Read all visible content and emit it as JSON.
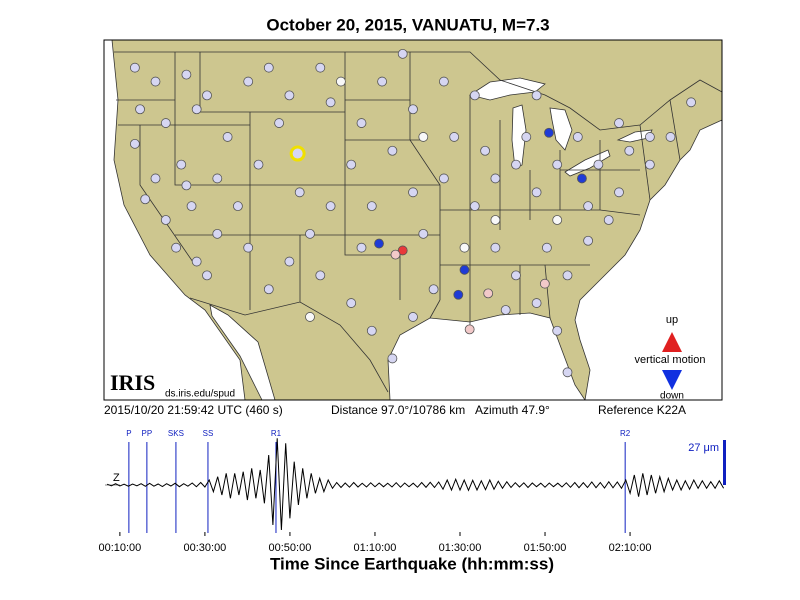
{
  "chart_data": [
    {
      "type": "map",
      "title": "October 20, 2015, VANUATU, M=7.3",
      "xlim": [
        -126,
        -66
      ],
      "ylim": [
        24,
        50
      ],
      "land_color": "#cdc68f",
      "series": [
        {
          "color": "#d6d6f2",
          "x": [
            -123,
            -121,
            -118,
            -122.5,
            -120,
            -117,
            -123,
            -121,
            -118.5,
            -122,
            -120,
            -117.5,
            -119,
            -117,
            -116,
            -115,
            -118,
            -115,
            -114,
            -116,
            -112,
            -110,
            -108,
            -105,
            -104,
            -109,
            -111,
            -113,
            -112,
            -110,
            -108,
            -106,
            -107,
            -104,
            -105,
            -102,
            -100,
            -98,
            -101,
            -100,
            -102,
            -101,
            -99,
            -97,
            -96,
            -98,
            -96,
            -95,
            -94,
            -96,
            -93,
            -92,
            -93,
            -90,
            -89,
            -90,
            -88,
            -86,
            -87,
            -84,
            -82,
            -81,
            -81,
            -83,
            -79,
            -77,
            -79,
            -76,
            -78,
            -75,
            -76,
            -73,
            -71,
            -69,
            -73,
            -84,
            -86,
            -88,
            -85,
            -84,
            -82,
            -80
          ],
          "values": [
            48,
            47,
            47.5,
            45,
            44,
            45,
            42.5,
            40,
            41,
            38.5,
            37,
            38,
            35,
            34,
            33,
            36,
            39.5,
            40,
            43,
            46,
            47,
            48,
            46,
            48,
            45.5,
            44,
            41,
            38,
            35,
            32,
            34,
            36,
            39,
            38,
            33,
            31,
            29,
            27,
            35,
            38,
            41,
            44,
            47,
            49,
            45,
            42,
            39,
            36,
            32,
            30,
            40,
            43,
            47,
            46,
            42,
            38,
            35,
            33,
            30.5,
            31,
            29,
            26,
            33,
            35,
            35.5,
            37,
            38,
            39,
            41,
            42,
            44,
            43,
            43,
            45.5,
            41,
            39,
            41,
            40,
            43,
            46,
            41,
            43
          ]
        },
        {
          "color": "#f8f8f8",
          "x": [
            -103,
            -95,
            -88,
            -82,
            -91,
            -106
          ],
          "values": [
            47,
            43,
            37,
            37,
            35,
            30
          ]
        },
        {
          "color": "#1f3bd6",
          "x": [
            -82.8,
            -79.6,
            -91,
            -91.6,
            -99.3
          ],
          "values": [
            43.3,
            40,
            33.4,
            31.6,
            35.3
          ]
        },
        {
          "color": "#e8393a",
          "x": [
            -97
          ],
          "values": [
            34.8
          ]
        },
        {
          "color": "#f2c9c9",
          "x": [
            -97.7,
            -88.7,
            -83.2,
            -90.5
          ],
          "values": [
            34.5,
            31.7,
            32.4,
            29.1
          ]
        }
      ],
      "reference": {
        "x": -107.2,
        "value": 41.8,
        "color": "#f0e000"
      },
      "legend": {
        "up": "up",
        "label": "vertical motion",
        "down": "down",
        "up_color": "#e02020",
        "down_color": "#1030e0"
      },
      "logo": "IRIS",
      "url": "ds.iris.edu/spud"
    },
    {
      "type": "line",
      "start_time": "2015/10/20 21:59:42 UTC (460 s)",
      "distance": "Distance  97.0°/10786 km",
      "azimuth": "Azimuth  47.9°",
      "station": "Reference K22A",
      "component": "Z",
      "xlabel": "Time Since Earthquake (hh:mm:ss)",
      "xlim": [
        390,
        9140
      ],
      "ylim": [
        -27,
        27
      ],
      "xticks": [
        {
          "value": 600,
          "label": "00:10:00"
        },
        {
          "value": 1800,
          "label": "00:30:00"
        },
        {
          "value": 3000,
          "label": "00:50:00"
        },
        {
          "value": 4200,
          "label": "01:10:00"
        },
        {
          "value": 5400,
          "label": "01:30:00"
        },
        {
          "value": 6600,
          "label": "01:50:00"
        },
        {
          "value": 7800,
          "label": "02:10:00"
        }
      ],
      "color": "#000000",
      "phase_color": "#1020c0",
      "phases": [
        {
          "name": "P",
          "time": 727
        },
        {
          "name": "PP",
          "time": 981
        },
        {
          "name": "SKS",
          "time": 1391
        },
        {
          "name": "SS",
          "time": 1843
        },
        {
          "name": "R1",
          "time": 2803
        },
        {
          "name": "R2",
          "time": 7731
        }
      ],
      "scale_bar": {
        "value": 27,
        "label": "27 μm"
      },
      "x": [
        420,
        480,
        540,
        600,
        660,
        720,
        780,
        840,
        900,
        960,
        1020,
        1080,
        1140,
        1200,
        1260,
        1320,
        1380,
        1440,
        1500,
        1560,
        1620,
        1680,
        1740,
        1800,
        1860,
        1920,
        1980,
        2040,
        2100,
        2160,
        2220,
        2280,
        2340,
        2400,
        2460,
        2520,
        2580,
        2640,
        2700,
        2760,
        2820,
        2880,
        2940,
        3000,
        3060,
        3120,
        3180,
        3240,
        3300,
        3360,
        3420,
        3480,
        3540,
        3600,
        3660,
        3720,
        3780,
        3840,
        3900,
        3960,
        4020,
        4080,
        4140,
        4200,
        4260,
        4320,
        4380,
        4440,
        4500,
        4560,
        4620,
        4680,
        4740,
        4800,
        4860,
        4920,
        4980,
        5040,
        5100,
        5160,
        5220,
        5280,
        5340,
        5400,
        5460,
        5520,
        5580,
        5640,
        5700,
        5760,
        5820,
        5880,
        5940,
        6000,
        6060,
        6120,
        6180,
        6240,
        6300,
        6360,
        6420,
        6480,
        6540,
        6600,
        6660,
        6720,
        6780,
        6840,
        6900,
        6960,
        7020,
        7080,
        7140,
        7200,
        7260,
        7320,
        7380,
        7440,
        7500,
        7560,
        7620,
        7680,
        7740,
        7800,
        7860,
        7920,
        7980,
        8040,
        8100,
        8160,
        8220,
        8280,
        8340,
        8400,
        8460,
        8520,
        8580,
        8640,
        8700,
        8760,
        8820,
        8880,
        8940,
        9000,
        9060,
        9120
      ],
      "values": [
        0.5,
        -0.5,
        0.8,
        -0.6,
        0.5,
        -0.7,
        0.6,
        -0.5,
        0.8,
        -0.8,
        1,
        -0.7,
        0.6,
        -0.9,
        0.8,
        -0.6,
        1,
        -1,
        0.8,
        -0.7,
        1.2,
        -1,
        1.5,
        -1.2,
        3,
        -4,
        5,
        -6,
        7,
        -8,
        7,
        -6,
        8,
        -9,
        10,
        -8,
        9,
        -11,
        18,
        -24,
        28,
        -27,
        25,
        -20,
        14,
        -12,
        10,
        -8,
        7,
        -5,
        4,
        -4,
        3,
        -2,
        1.5,
        -1.5,
        1.2,
        -1.3,
        1.5,
        -1.2,
        1,
        -1.2,
        1.3,
        -1,
        1.2,
        -1.1,
        1,
        -1.2,
        1.4,
        -1.3,
        1.2,
        -1,
        1.1,
        -1.3,
        1.5,
        -1.4,
        1.6,
        -1.5,
        1.8,
        -2.5,
        3,
        -3,
        3.5,
        -3,
        3,
        -3.2,
        2.8,
        -3,
        2.5,
        -2.8,
        3,
        -2.5,
        2.2,
        -2,
        2,
        -1.5,
        1.4,
        -1.2,
        1.3,
        -1.5,
        1.2,
        -1,
        1.1,
        -1.3,
        1.2,
        -1,
        1.1,
        -1.2,
        1.3,
        -1.4,
        1.5,
        -1.6,
        1.4,
        -1.5,
        1.8,
        -1.6,
        1.5,
        -1.8,
        2,
        -1.7,
        1.8,
        -2,
        3,
        -5,
        6,
        -7,
        7,
        -6,
        6,
        -5,
        5,
        -4,
        4,
        -3,
        3,
        -3,
        2.5,
        -2.5,
        3,
        -2,
        2.5,
        -2,
        2,
        -2,
        2.5,
        -2
      ]
    }
  ]
}
